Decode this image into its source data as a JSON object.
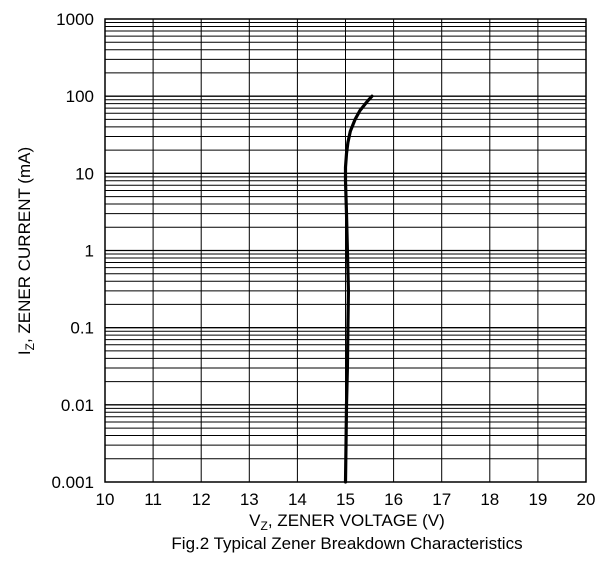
{
  "chart_data": {
    "type": "line",
    "title": "",
    "caption": "Fig.2 Typical Zener Breakdown Characteristics",
    "xlabel": {
      "main": "V",
      "sub": "Z",
      "rest": ", ZENER VOLTAGE (V)"
    },
    "ylabel": {
      "main": "I",
      "sub": "Z",
      "rest": ", ZENER CURRENT (mA)"
    },
    "x_scale": "linear",
    "y_scale": "log",
    "xlim": [
      10,
      20
    ],
    "ylim": [
      0.001,
      1000
    ],
    "x_ticks": [
      "10",
      "11",
      "12",
      "13",
      "14",
      "15",
      "16",
      "17",
      "18",
      "19",
      "20"
    ],
    "y_ticks": [
      "0.001",
      "0.01",
      "0.1",
      "1",
      "10",
      "100",
      "1000"
    ],
    "grid": true,
    "legend": "none",
    "line_color": "#000000",
    "series": [
      {
        "x": [
          15.0,
          15.01,
          15.02,
          15.04,
          15.05,
          15.06,
          15.04,
          15.02,
          15.0,
          15.0,
          15.02,
          15.05,
          15.1,
          15.2,
          15.3,
          15.45,
          15.55
        ],
        "y": [
          0.001,
          0.003,
          0.01,
          0.03,
          0.1,
          0.3,
          1,
          3,
          8,
          12,
          18,
          25,
          35,
          50,
          65,
          85,
          100
        ]
      }
    ]
  }
}
